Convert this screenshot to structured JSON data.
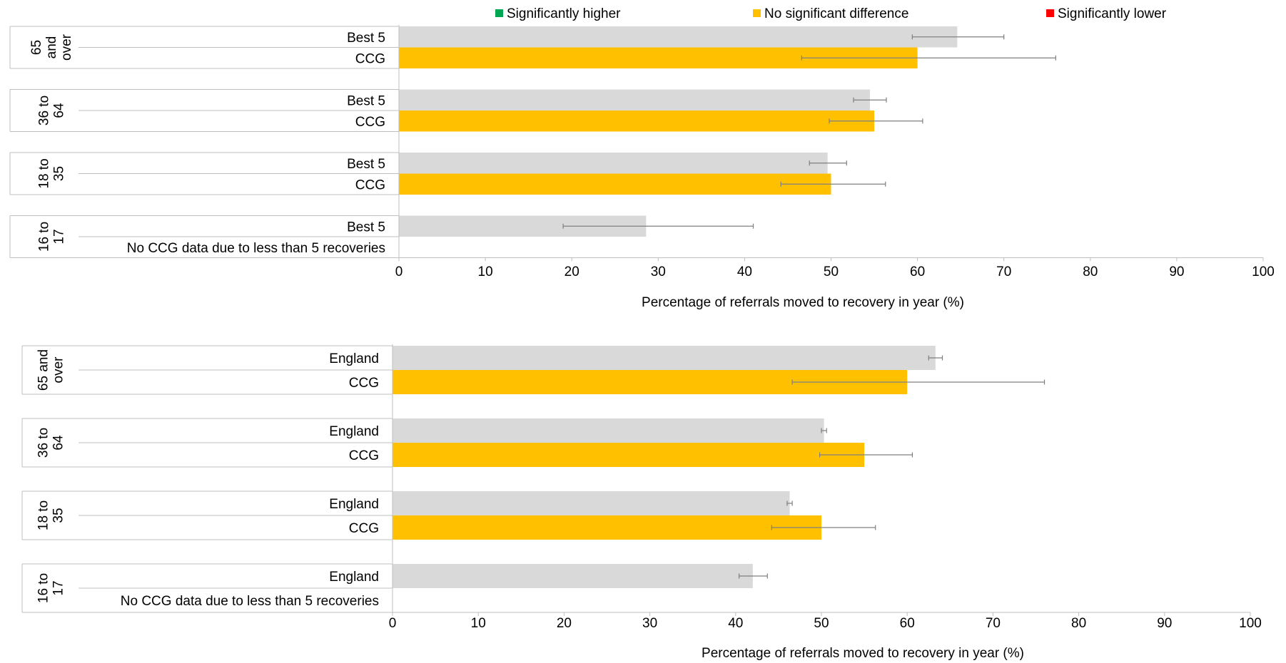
{
  "legend": {
    "items": [
      {
        "label": "Significantly higher",
        "color": "#00a651"
      },
      {
        "label": "No significant difference",
        "color": "#ffc000"
      },
      {
        "label": "Significantly lower",
        "color": "#ff0000"
      }
    ]
  },
  "colors": {
    "comparator_bar": "#d9d9d9",
    "ccg_bar": "#ffc000",
    "error_bar": "#7f7f7f"
  },
  "chart_data": [
    {
      "type": "bar",
      "orientation": "horizontal",
      "xlabel": "Percentage of referrals moved to recovery in year (%)",
      "xlim": [
        0,
        100
      ],
      "xticks": [
        0,
        10,
        20,
        30,
        40,
        50,
        60,
        70,
        80,
        90,
        100
      ],
      "groups": [
        {
          "label": "65 and over",
          "label_lines": [
            "65",
            "and",
            "over"
          ],
          "rows": [
            {
              "label": "Best 5",
              "value": 64.6,
              "ci": [
                59.4,
                70.0
              ],
              "color_key": "comparator_bar"
            },
            {
              "label": "CCG",
              "value": 60.0,
              "ci": [
                46.6,
                76.0
              ],
              "color_key": "ccg_bar"
            }
          ]
        },
        {
          "label": "36 to 64",
          "label_lines": [
            "36 to",
            "64"
          ],
          "rows": [
            {
              "label": "Best 5",
              "value": 54.5,
              "ci": [
                52.6,
                56.4
              ],
              "color_key": "comparator_bar"
            },
            {
              "label": "CCG",
              "value": 55.0,
              "ci": [
                49.8,
                60.6
              ],
              "color_key": "ccg_bar"
            }
          ]
        },
        {
          "label": "18 to 35",
          "label_lines": [
            "18 to",
            "35"
          ],
          "rows": [
            {
              "label": "Best 5",
              "value": 49.6,
              "ci": [
                47.5,
                51.8
              ],
              "color_key": "comparator_bar"
            },
            {
              "label": "CCG",
              "value": 50.0,
              "ci": [
                44.2,
                56.3
              ],
              "color_key": "ccg_bar"
            }
          ]
        },
        {
          "label": "16 to 17",
          "label_lines": [
            "16 to",
            "17"
          ],
          "rows": [
            {
              "label": "Best 5",
              "value": 28.6,
              "ci": [
                19.0,
                41.0
              ],
              "color_key": "comparator_bar"
            },
            {
              "label": "No CCG data due to less than 5 recoveries",
              "value": null,
              "ci": null,
              "color_key": "ccg_bar"
            }
          ]
        }
      ]
    },
    {
      "type": "bar",
      "orientation": "horizontal",
      "xlabel": "Percentage of referrals moved to recovery in year (%)",
      "xlim": [
        0,
        100
      ],
      "xticks": [
        0,
        10,
        20,
        30,
        40,
        50,
        60,
        70,
        80,
        90,
        100
      ],
      "groups": [
        {
          "label": "65 and over",
          "label_lines": [
            "65 and",
            "over"
          ],
          "rows": [
            {
              "label": "England",
              "value": 63.3,
              "ci": [
                62.5,
                64.1
              ],
              "color_key": "comparator_bar"
            },
            {
              "label": "CCG",
              "value": 60.0,
              "ci": [
                46.6,
                76.0
              ],
              "color_key": "ccg_bar"
            }
          ]
        },
        {
          "label": "36 to 64",
          "label_lines": [
            "36 to",
            "64"
          ],
          "rows": [
            {
              "label": "England",
              "value": 50.3,
              "ci": [
                50.0,
                50.6
              ],
              "color_key": "comparator_bar"
            },
            {
              "label": "CCG",
              "value": 55.0,
              "ci": [
                49.8,
                60.6
              ],
              "color_key": "ccg_bar"
            }
          ]
        },
        {
          "label": "18 to 35",
          "label_lines": [
            "18 to",
            "35"
          ],
          "rows": [
            {
              "label": "England",
              "value": 46.3,
              "ci": [
                46.0,
                46.6
              ],
              "color_key": "comparator_bar"
            },
            {
              "label": "CCG",
              "value": 50.0,
              "ci": [
                44.2,
                56.3
              ],
              "color_key": "ccg_bar"
            }
          ]
        },
        {
          "label": "16 to 17",
          "label_lines": [
            "16 to",
            "17"
          ],
          "rows": [
            {
              "label": "England",
              "value": 42.0,
              "ci": [
                40.4,
                43.7
              ],
              "color_key": "comparator_bar"
            },
            {
              "label": "No CCG data due to less than 5 recoveries",
              "value": null,
              "ci": null,
              "color_key": "ccg_bar"
            }
          ]
        }
      ]
    }
  ]
}
